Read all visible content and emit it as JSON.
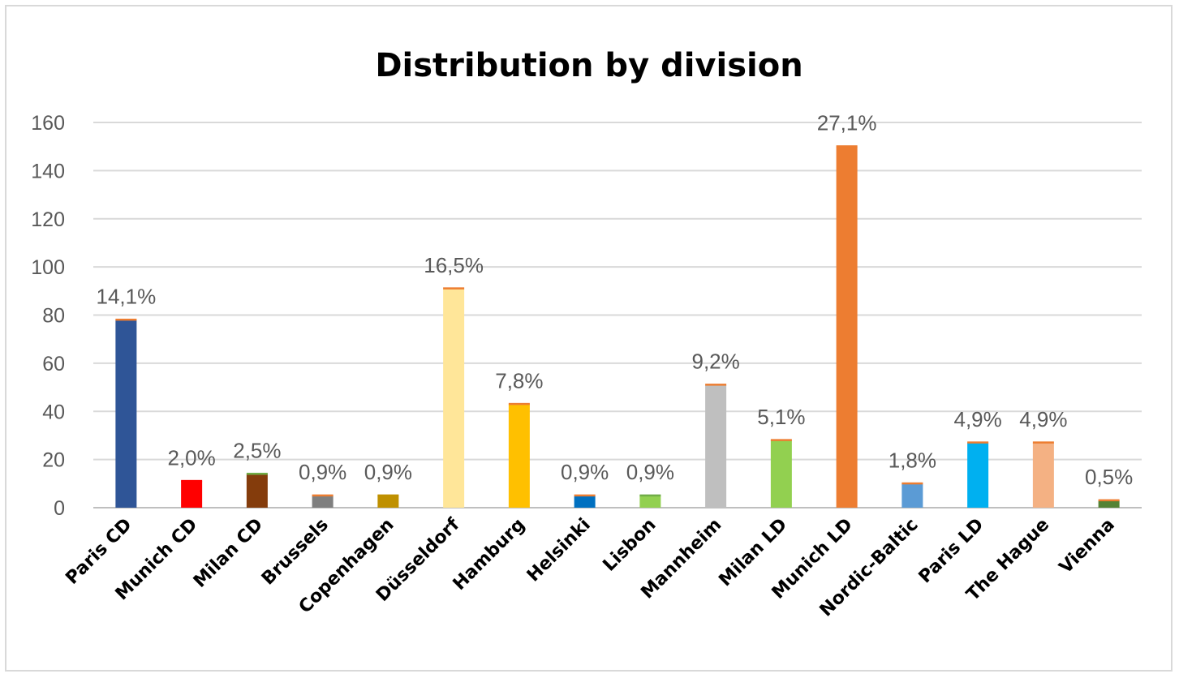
{
  "chart_data": {
    "type": "bar",
    "title": "Distribution by division",
    "xlabel": "",
    "ylabel": "",
    "ylim": [
      0,
      160
    ],
    "yticks": [
      0,
      20,
      40,
      60,
      80,
      100,
      120,
      140,
      160
    ],
    "grid": true,
    "legend": "none",
    "categories": [
      "Paris CD",
      "Munich CD",
      "Milan CD",
      "Brussels",
      "Copenhagen",
      "Düsseldorf",
      "Hamburg",
      "Helsinki",
      "Lisbon",
      "Mannheim",
      "Milan LD",
      "Munich LD",
      "Nordic-Baltic",
      "Paris LD",
      "The Hague",
      "Vienna"
    ],
    "values": [
      78,
      11,
      14,
      5,
      5,
      91,
      43,
      5,
      5,
      51,
      28,
      150,
      10,
      27,
      27,
      3
    ],
    "data_labels": [
      "14,1%",
      "2,0%",
      "2,5%",
      "0,9%",
      "0,9%",
      "16,5%",
      "7,8%",
      "0,9%",
      "0,9%",
      "9,2%",
      "5,1%",
      "27,1%",
      "1,8%",
      "4,9%",
      "4,9%",
      "0,5%"
    ],
    "colors": [
      "#2f5597",
      "#ff0000",
      "#843c0c",
      "#7f7f7f",
      "#bf9000",
      "#ffe699",
      "#ffc000",
      "#0070c0",
      "#92d050",
      "#bfbfbf",
      "#92d050",
      "#ed7d31",
      "#5b9bd5",
      "#00b0f0",
      "#f4b183",
      "#548235"
    ],
    "cap_colors": [
      "#ed7d31",
      "#ff0000",
      "#70ad47",
      "#ed7d31",
      "#bf9000",
      "#ed7d31",
      "#ed7d31",
      "#ed7d31",
      "#70ad47",
      "#ed7d31",
      "#ed7d31",
      "#ed7d31",
      "#ed7d31",
      "#ed7d31",
      "#ed7d31",
      "#ed7d31"
    ],
    "gridline_color": "#d9d9d9",
    "axis_color": "#bfbfbf"
  }
}
